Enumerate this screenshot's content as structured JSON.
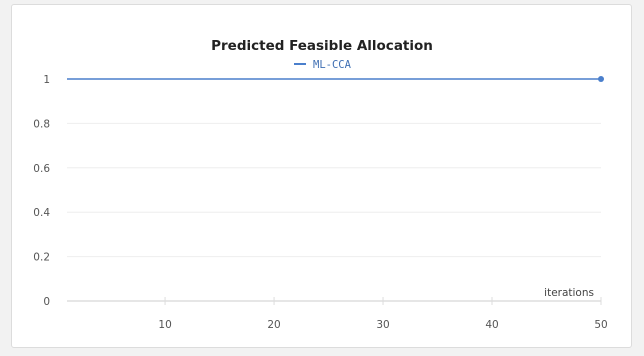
{
  "chart_data": {
    "type": "line",
    "title": "Predicted Feasible Allocation",
    "xlabel": "iterations",
    "ylabel": "",
    "xlim": [
      1,
      50
    ],
    "ylim": [
      0,
      1
    ],
    "x_ticks": [
      10,
      20,
      30,
      40,
      50
    ],
    "y_ticks": [
      0,
      0.2,
      0.4,
      0.6,
      0.8,
      1
    ],
    "x_tick_labels": [
      "10",
      "20",
      "30",
      "40",
      "50"
    ],
    "y_tick_labels": [
      "0",
      "0.2",
      "0.4",
      "0.6",
      "0.8",
      "1"
    ],
    "grid": true,
    "legend_position": "top-center",
    "series": [
      {
        "name": "ML-CCA",
        "color": "#4a7fcc",
        "x": [
          1,
          50
        ],
        "y": [
          1,
          1
        ],
        "marker_at_last": true
      }
    ]
  }
}
